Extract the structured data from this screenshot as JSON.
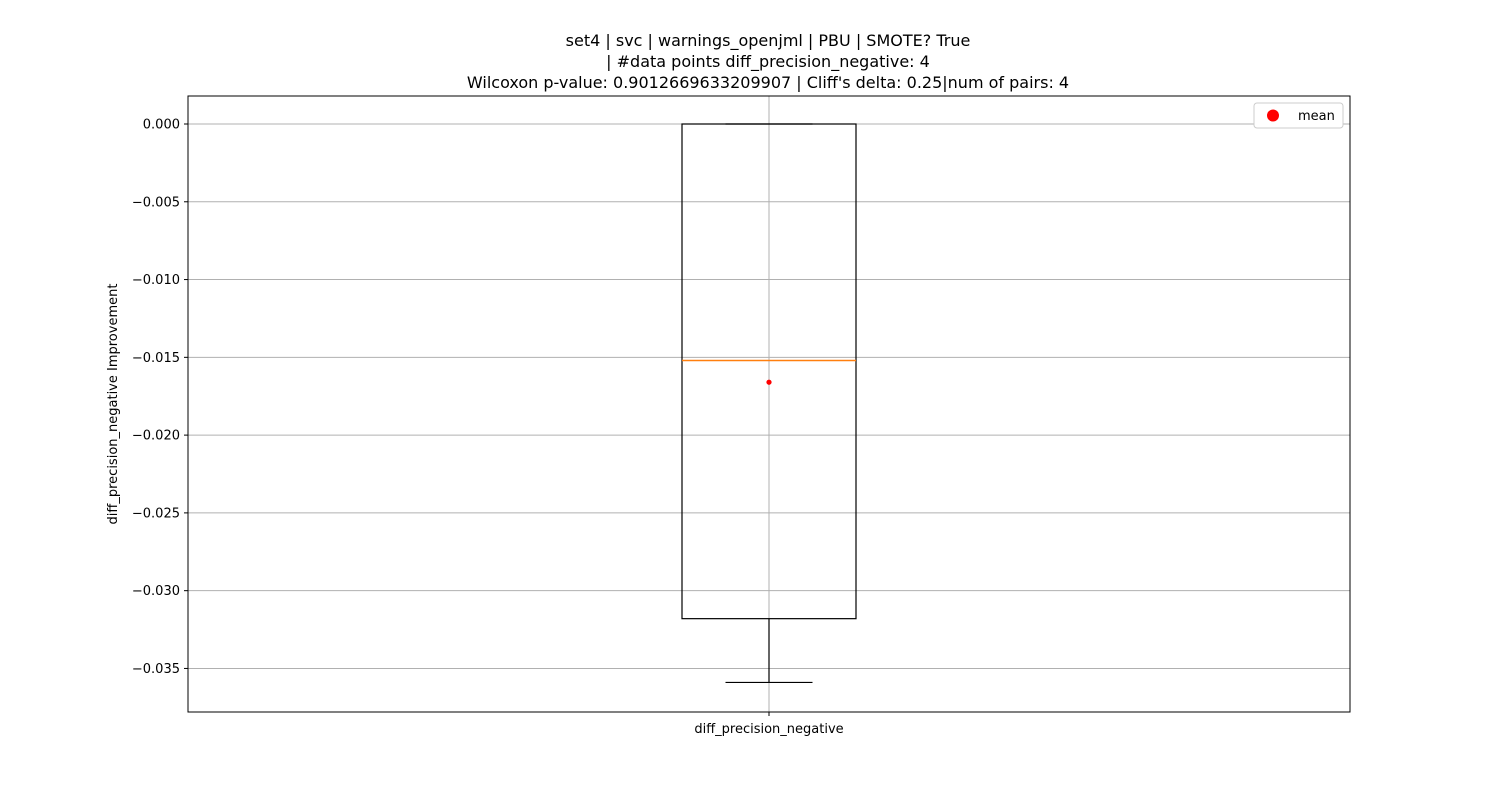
{
  "chart_data": {
    "type": "box",
    "title_lines": [
      "set4 | svc | warnings_openjml | PBU | SMOTE? True",
      "| #data points diff_precision_negative: 4",
      "Wilcoxon p-value: 0.9012669633209907 | Cliff's delta: 0.25|num of pairs: 4"
    ],
    "xlabel": "",
    "ylabel": "diff_precision_negative Improvement",
    "categories": [
      "diff_precision_negative"
    ],
    "box": {
      "whisker_low": -0.0359,
      "q1": -0.0318,
      "median": -0.0152,
      "q3": 0.0,
      "whisker_high": 0.0,
      "mean": -0.0166
    },
    "ylim": [
      -0.0378,
      0.0018
    ],
    "yticks": [
      0.0,
      -0.005,
      -0.01,
      -0.015,
      -0.02,
      -0.025,
      -0.03,
      -0.035
    ],
    "ytick_labels": [
      "0.000",
      "−0.005",
      "−0.010",
      "−0.015",
      "−0.020",
      "−0.025",
      "−0.030",
      "−0.035"
    ],
    "grid": true,
    "legend": {
      "position": "top-right",
      "entries": [
        {
          "label": "mean",
          "color": "#ff0000",
          "marker": "circle"
        }
      ]
    },
    "colors": {
      "box": "#000000",
      "median": "#ff7f0e",
      "mean": "#ff0000",
      "grid": "#b0b0b0"
    }
  }
}
